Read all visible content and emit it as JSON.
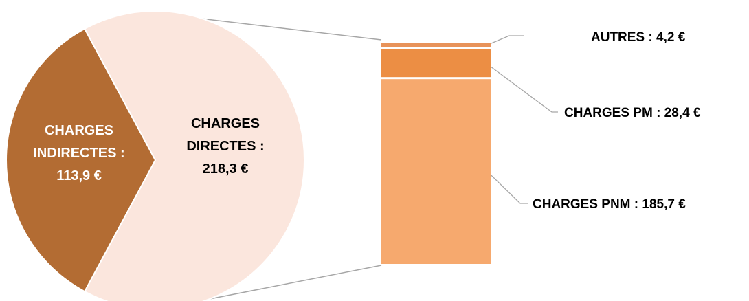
{
  "chart_data": {
    "type": "pie",
    "subtype": "pie-of-bar",
    "pie": {
      "slices": [
        {
          "label_lines": [
            "CHARGES",
            "INDIRECTES :",
            "113,9 €"
          ],
          "value": 113.9,
          "color": "#b36c33",
          "text_color": "#ffffff"
        },
        {
          "label_lines": [
            "CHARGES",
            "DIRECTES :",
            "218,3 €"
          ],
          "value": 218.3,
          "color": "#fbe6dd",
          "text_color": "#000000"
        }
      ]
    },
    "bar": {
      "segments": [
        {
          "label": "CHARGES PNM :  185,7 €",
          "value": 185.7,
          "color": "#f6a96e"
        },
        {
          "label": "CHARGES PM :  28,4 €",
          "value": 28.4,
          "color": "#ec8e44"
        },
        {
          "label": "AUTRES :  4,2 €",
          "value": 4.2,
          "color": "#e8935a"
        }
      ]
    },
    "connector_color": "#a6a6a6",
    "leader_color": "#a6a6a6"
  }
}
